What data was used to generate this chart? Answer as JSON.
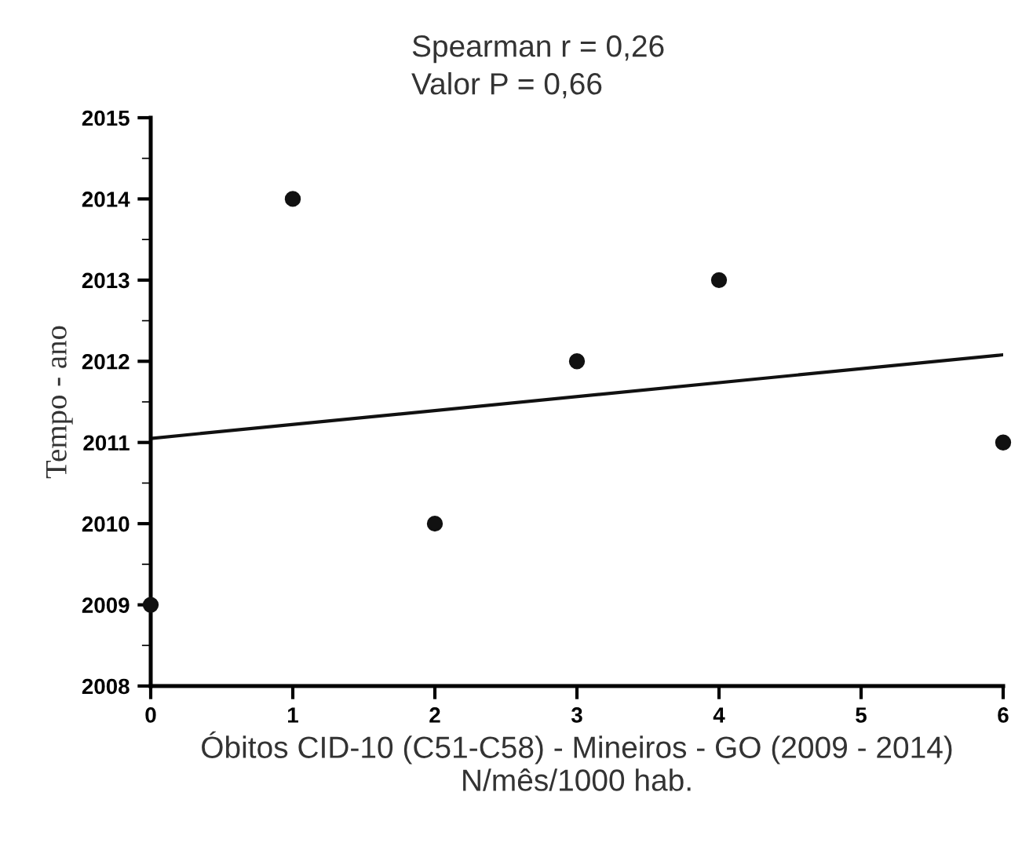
{
  "chart_data": {
    "type": "scatter",
    "xlabel": "Óbitos CID-10 (C51-C58) - Mineiros - GO (2009 - 2014)\nN/mês/1000 hab.",
    "ylabel": "Tempo - ano",
    "annotations": [
      "Spearman r = 0,26",
      "Valor P = 0,66"
    ],
    "xlim": [
      0,
      6
    ],
    "xticks": [
      0,
      1,
      2,
      3,
      4,
      5,
      6
    ],
    "ylim": [
      2008,
      2015
    ],
    "yticks": [
      2008,
      2009,
      2010,
      2011,
      2012,
      2013,
      2014,
      2015
    ],
    "grid": false,
    "legend": false,
    "marker": "circle",
    "series": [
      {
        "color": "#111111",
        "x": [
          0,
          1,
          2,
          3,
          4,
          6
        ],
        "values": [
          2009,
          2014,
          2010,
          2012,
          2013,
          2011
        ]
      },
      {
        "type": "line",
        "color": "#111111",
        "x": [
          0,
          6
        ],
        "values": [
          2011.05,
          2012.08
        ],
        "marker": "none",
        "line_style": "solid"
      }
    ]
  }
}
